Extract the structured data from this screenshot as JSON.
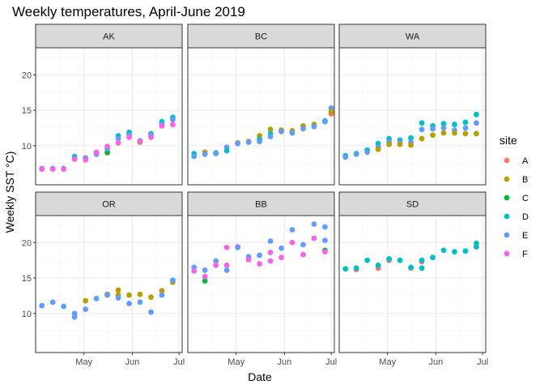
{
  "chart_data": {
    "type": "scatter",
    "title": "Weekly temperatures, April-June 2019",
    "xlabel": "Date",
    "ylabel": "Weekly SST °C)",
    "legend_title": "site",
    "legend_position": "right",
    "grid": true,
    "ylim": [
      4.5,
      23.8
    ],
    "y_ticks": [
      10,
      15,
      20
    ],
    "x_ticks": [
      {
        "label": "May",
        "day": 30
      },
      {
        "label": "Jun",
        "day": 61
      },
      {
        "label": "Jul",
        "day": 91
      }
    ],
    "x_day_zero": "2019-04-01",
    "xlim_days": [
      -1,
      93
    ],
    "sites": [
      {
        "name": "A",
        "color": "#F8766D"
      },
      {
        "name": "B",
        "color": "#B79F00"
      },
      {
        "name": "C",
        "color": "#00BA38"
      },
      {
        "name": "D",
        "color": "#00BFC4"
      },
      {
        "name": "E",
        "color": "#619CFF"
      },
      {
        "name": "F",
        "color": "#F564E3"
      }
    ],
    "panels": [
      {
        "region": "AK",
        "row": 0,
        "col": 0,
        "points": [
          {
            "x": 3,
            "series": "E",
            "y": 6.8
          },
          {
            "x": 3,
            "series": "F",
            "y": 6.7
          },
          {
            "x": 10,
            "series": "E",
            "y": 6.8
          },
          {
            "x": 10,
            "series": "F",
            "y": 6.7
          },
          {
            "x": 17,
            "series": "E",
            "y": 6.8
          },
          {
            "x": 17,
            "series": "F",
            "y": 6.7
          },
          {
            "x": 24,
            "series": "D",
            "y": 8.5
          },
          {
            "x": 24,
            "series": "E",
            "y": 8.2
          },
          {
            "x": 24,
            "series": "F",
            "y": 8.1
          },
          {
            "x": 31,
            "series": "E",
            "y": 8.3
          },
          {
            "x": 31,
            "series": "F",
            "y": 8.0
          },
          {
            "x": 38,
            "series": "D",
            "y": 9.0
          },
          {
            "x": 38,
            "series": "E",
            "y": 8.8
          },
          {
            "x": 38,
            "series": "F",
            "y": 9.1
          },
          {
            "x": 45,
            "series": "B",
            "y": 9.0
          },
          {
            "x": 45,
            "series": "C",
            "y": 9.1
          },
          {
            "x": 45,
            "series": "E",
            "y": 9.6
          },
          {
            "x": 45,
            "series": "F",
            "y": 9.9
          },
          {
            "x": 52,
            "series": "D",
            "y": 11.4
          },
          {
            "x": 52,
            "series": "E",
            "y": 11.0
          },
          {
            "x": 52,
            "series": "F",
            "y": 10.4
          },
          {
            "x": 59,
            "series": "D",
            "y": 11.9
          },
          {
            "x": 59,
            "series": "E",
            "y": 11.5
          },
          {
            "x": 59,
            "series": "F",
            "y": 11.2
          },
          {
            "x": 66,
            "series": "B",
            "y": 10.5
          },
          {
            "x": 66,
            "series": "E",
            "y": 10.7
          },
          {
            "x": 66,
            "series": "F",
            "y": 10.6
          },
          {
            "x": 73,
            "series": "D",
            "y": 11.7
          },
          {
            "x": 73,
            "series": "E",
            "y": 11.5
          },
          {
            "x": 73,
            "series": "F",
            "y": 11.2
          },
          {
            "x": 80,
            "series": "D",
            "y": 13.4
          },
          {
            "x": 80,
            "series": "E",
            "y": 13.0
          },
          {
            "x": 80,
            "series": "F",
            "y": 12.8
          },
          {
            "x": 87,
            "series": "D",
            "y": 14.0
          },
          {
            "x": 87,
            "series": "E",
            "y": 13.7
          },
          {
            "x": 87,
            "series": "F",
            "y": 13.0
          }
        ]
      },
      {
        "region": "BC",
        "row": 0,
        "col": 1,
        "points": [
          {
            "x": 3,
            "series": "D",
            "y": 8.9
          },
          {
            "x": 3,
            "series": "E",
            "y": 8.5
          },
          {
            "x": 10,
            "series": "B",
            "y": 9.1
          },
          {
            "x": 10,
            "series": "E",
            "y": 8.8
          },
          {
            "x": 17,
            "series": "D",
            "y": 9.0
          },
          {
            "x": 17,
            "series": "E",
            "y": 8.9
          },
          {
            "x": 24,
            "series": "E",
            "y": 9.8
          },
          {
            "x": 24,
            "series": "D",
            "y": 9.3
          },
          {
            "x": 31,
            "series": "B",
            "y": 10.4
          },
          {
            "x": 31,
            "series": "E",
            "y": 10.3
          },
          {
            "x": 38,
            "series": "B",
            "y": 10.6
          },
          {
            "x": 38,
            "series": "E",
            "y": 10.5
          },
          {
            "x": 45,
            "series": "B",
            "y": 11.4
          },
          {
            "x": 45,
            "series": "D",
            "y": 10.9
          },
          {
            "x": 45,
            "series": "E",
            "y": 10.6
          },
          {
            "x": 52,
            "series": "B",
            "y": 12.3
          },
          {
            "x": 52,
            "series": "D",
            "y": 11.7
          },
          {
            "x": 52,
            "series": "E",
            "y": 11.3
          },
          {
            "x": 59,
            "series": "B",
            "y": 12.2
          },
          {
            "x": 59,
            "series": "E",
            "y": 12.0
          },
          {
            "x": 66,
            "series": "B",
            "y": 12.1
          },
          {
            "x": 66,
            "series": "E",
            "y": 11.8
          },
          {
            "x": 73,
            "series": "B",
            "y": 12.8
          },
          {
            "x": 73,
            "series": "E",
            "y": 12.4
          },
          {
            "x": 80,
            "series": "B",
            "y": 13.0
          },
          {
            "x": 80,
            "series": "E",
            "y": 12.7
          },
          {
            "x": 87,
            "series": "D",
            "y": 13.5
          },
          {
            "x": 87,
            "series": "E",
            "y": 13.4
          },
          {
            "x": 91,
            "series": "E",
            "y": 15.3
          },
          {
            "x": 91,
            "series": "A",
            "y": 14.5
          },
          {
            "x": 91,
            "series": "B",
            "y": 14.8
          }
        ]
      },
      {
        "region": "WA",
        "row": 0,
        "col": 2,
        "points": [
          {
            "x": 3,
            "series": "D",
            "y": 8.6
          },
          {
            "x": 3,
            "series": "E",
            "y": 8.4
          },
          {
            "x": 10,
            "series": "D",
            "y": 8.9
          },
          {
            "x": 10,
            "series": "E",
            "y": 8.8
          },
          {
            "x": 17,
            "series": "D",
            "y": 9.4
          },
          {
            "x": 17,
            "series": "E",
            "y": 9.1
          },
          {
            "x": 24,
            "series": "D",
            "y": 10.3
          },
          {
            "x": 24,
            "series": "E",
            "y": 9.8
          },
          {
            "x": 24,
            "series": "B",
            "y": 9.5
          },
          {
            "x": 31,
            "series": "D",
            "y": 11.0
          },
          {
            "x": 31,
            "series": "E",
            "y": 10.6
          },
          {
            "x": 31,
            "series": "B",
            "y": 10.2
          },
          {
            "x": 38,
            "series": "D",
            "y": 10.8
          },
          {
            "x": 38,
            "series": "E",
            "y": 10.5
          },
          {
            "x": 38,
            "series": "B",
            "y": 10.2
          },
          {
            "x": 45,
            "series": "D",
            "y": 11.1
          },
          {
            "x": 45,
            "series": "E",
            "y": 10.5
          },
          {
            "x": 45,
            "series": "B",
            "y": 10.1
          },
          {
            "x": 52,
            "series": "D",
            "y": 13.2
          },
          {
            "x": 52,
            "series": "E",
            "y": 12.3
          },
          {
            "x": 52,
            "series": "B",
            "y": 11.0
          },
          {
            "x": 59,
            "series": "D",
            "y": 12.8
          },
          {
            "x": 59,
            "series": "E",
            "y": 12.4
          },
          {
            "x": 59,
            "series": "B",
            "y": 11.5
          },
          {
            "x": 66,
            "series": "D",
            "y": 13.1
          },
          {
            "x": 66,
            "series": "E",
            "y": 12.5
          },
          {
            "x": 66,
            "series": "B",
            "y": 11.8
          },
          {
            "x": 73,
            "series": "D",
            "y": 13.0
          },
          {
            "x": 73,
            "series": "E",
            "y": 12.2
          },
          {
            "x": 73,
            "series": "B",
            "y": 11.8
          },
          {
            "x": 80,
            "series": "D",
            "y": 13.3
          },
          {
            "x": 80,
            "series": "E",
            "y": 12.5
          },
          {
            "x": 80,
            "series": "B",
            "y": 11.7
          },
          {
            "x": 87,
            "series": "D",
            "y": 14.4
          },
          {
            "x": 87,
            "series": "E",
            "y": 13.2
          },
          {
            "x": 87,
            "series": "B",
            "y": 11.7
          }
        ]
      },
      {
        "region": "OR",
        "row": 1,
        "col": 0,
        "points": [
          {
            "x": 3,
            "series": "E",
            "y": 11.1
          },
          {
            "x": 10,
            "series": "E",
            "y": 11.6
          },
          {
            "x": 17,
            "series": "E",
            "y": 11.0
          },
          {
            "x": 24,
            "series": "E",
            "y": 10.0
          },
          {
            "x": 24,
            "series": "E",
            "y": 9.5
          },
          {
            "x": 31,
            "series": "B",
            "y": 11.8
          },
          {
            "x": 31,
            "series": "E",
            "y": 10.6
          },
          {
            "x": 38,
            "series": "E",
            "y": 12.1
          },
          {
            "x": 45,
            "series": "B",
            "y": 12.7
          },
          {
            "x": 45,
            "series": "E",
            "y": 12.6
          },
          {
            "x": 52,
            "series": "B",
            "y": 13.3
          },
          {
            "x": 52,
            "series": "B",
            "y": 12.6
          },
          {
            "x": 52,
            "series": "E",
            "y": 12.2
          },
          {
            "x": 59,
            "series": "B",
            "y": 12.6
          },
          {
            "x": 59,
            "series": "E",
            "y": 11.4
          },
          {
            "x": 66,
            "series": "B",
            "y": 12.7
          },
          {
            "x": 66,
            "series": "E",
            "y": 11.6
          },
          {
            "x": 73,
            "series": "B",
            "y": 12.3
          },
          {
            "x": 73,
            "series": "E",
            "y": 10.2
          },
          {
            "x": 80,
            "series": "B",
            "y": 13.2
          },
          {
            "x": 80,
            "series": "E",
            "y": 12.6
          },
          {
            "x": 87,
            "series": "B",
            "y": 14.4
          },
          {
            "x": 87,
            "series": "E",
            "y": 14.7
          }
        ]
      },
      {
        "region": "BB",
        "row": 1,
        "col": 1,
        "points": [
          {
            "x": 3,
            "series": "E",
            "y": 16.5
          },
          {
            "x": 3,
            "series": "F",
            "y": 16.0
          },
          {
            "x": 10,
            "series": "C",
            "y": 14.6
          },
          {
            "x": 10,
            "series": "F",
            "y": 15.2
          },
          {
            "x": 10,
            "series": "E",
            "y": 16.1
          },
          {
            "x": 17,
            "series": "E",
            "y": 17.4
          },
          {
            "x": 17,
            "series": "F",
            "y": 16.8
          },
          {
            "x": 24,
            "series": "F",
            "y": 19.3
          },
          {
            "x": 24,
            "series": "F",
            "y": 16.8
          },
          {
            "x": 24,
            "series": "E",
            "y": 16.1
          },
          {
            "x": 31,
            "series": "F",
            "y": 19.4
          },
          {
            "x": 31,
            "series": "E",
            "y": 19.3
          },
          {
            "x": 38,
            "series": "E",
            "y": 18.0
          },
          {
            "x": 38,
            "series": "F",
            "y": 17.6
          },
          {
            "x": 45,
            "series": "E",
            "y": 18.2
          },
          {
            "x": 45,
            "series": "F",
            "y": 17.0
          },
          {
            "x": 52,
            "series": "E",
            "y": 20.2
          },
          {
            "x": 52,
            "series": "F",
            "y": 18.6
          },
          {
            "x": 52,
            "series": "F",
            "y": 17.4
          },
          {
            "x": 59,
            "series": "E",
            "y": 19.2
          },
          {
            "x": 59,
            "series": "F",
            "y": 17.9
          },
          {
            "x": 66,
            "series": "E",
            "y": 21.8
          },
          {
            "x": 66,
            "series": "F",
            "y": 20.0
          },
          {
            "x": 73,
            "series": "E",
            "y": 19.7
          },
          {
            "x": 73,
            "series": "F",
            "y": 18.3
          },
          {
            "x": 80,
            "series": "E",
            "y": 22.6
          },
          {
            "x": 80,
            "series": "F",
            "y": 20.6
          },
          {
            "x": 87,
            "series": "E",
            "y": 22.2
          },
          {
            "x": 87,
            "series": "E",
            "y": 20.3
          },
          {
            "x": 87,
            "series": "C",
            "y": 18.9
          },
          {
            "x": 87,
            "series": "F",
            "y": 18.7
          }
        ]
      },
      {
        "region": "SD",
        "row": 1,
        "col": 2,
        "points": [
          {
            "x": 3,
            "series": "D",
            "y": 16.3
          },
          {
            "x": 10,
            "series": "A",
            "y": 16.2
          },
          {
            "x": 10,
            "series": "D",
            "y": 16.4
          },
          {
            "x": 17,
            "series": "D",
            "y": 17.5
          },
          {
            "x": 24,
            "series": "A",
            "y": 16.4
          },
          {
            "x": 24,
            "series": "D",
            "y": 16.8
          },
          {
            "x": 31,
            "series": "A",
            "y": 17.5
          },
          {
            "x": 31,
            "series": "D",
            "y": 17.7
          },
          {
            "x": 38,
            "series": "D",
            "y": 17.5
          },
          {
            "x": 45,
            "series": "A",
            "y": 16.4
          },
          {
            "x": 45,
            "series": "D",
            "y": 16.5
          },
          {
            "x": 52,
            "series": "A",
            "y": 17.3
          },
          {
            "x": 52,
            "series": "D",
            "y": 17.5
          },
          {
            "x": 52,
            "series": "D",
            "y": 16.4
          },
          {
            "x": 59,
            "series": "D",
            "y": 17.9
          },
          {
            "x": 66,
            "series": "D",
            "y": 18.9
          },
          {
            "x": 73,
            "series": "D",
            "y": 18.7
          },
          {
            "x": 80,
            "series": "D",
            "y": 18.8
          },
          {
            "x": 87,
            "series": "D",
            "y": 19.9
          },
          {
            "x": 87,
            "series": "A",
            "y": 19.4
          },
          {
            "x": 87,
            "series": "D",
            "y": 19.4
          }
        ]
      }
    ]
  },
  "colors": {
    "panel_border": "#333333",
    "grid_major": "#ebebeb",
    "grid_minor": "#f5f5f5",
    "strip_fill": "#d9d9d9",
    "tick": "#333333"
  }
}
